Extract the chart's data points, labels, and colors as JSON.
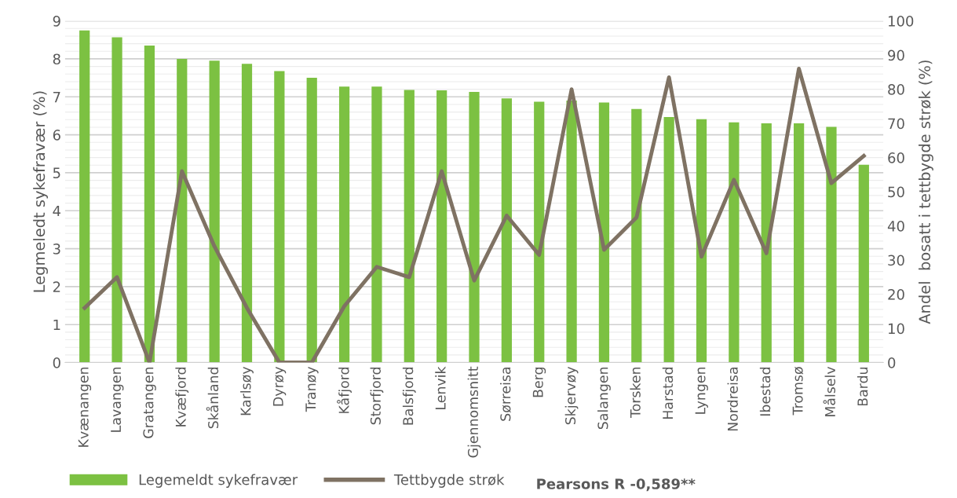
{
  "chart_data": {
    "type": "bar",
    "ylabel": "Legmeledt sykefravær (%)",
    "y2label": "Andel  bosatt i tettbygde strøk (%)",
    "categories": [
      "Kvænangen",
      "Lavangen",
      "Gratangen",
      "Kvæfjord",
      "Skånland",
      "Karlsøy",
      "Dyrøy",
      "Tranøy",
      "Kåfjord",
      "Storfjord",
      "Balsfjord",
      "Lenvik",
      "Gjennomsnitt",
      "Sørreisa",
      "Berg",
      "Skjervøy",
      "Salangen",
      "Torsken",
      "Harstad",
      "Lyngen",
      "Nordreisa",
      "Ibestad",
      "Tromsø",
      "Målselv",
      "Bardu"
    ],
    "series": [
      {
        "name": "Legemeldt sykefravær",
        "color": "#7cc142",
        "values": [
          8.75,
          8.57,
          8.35,
          8.0,
          7.95,
          7.87,
          7.68,
          7.5,
          7.27,
          7.27,
          7.18,
          7.17,
          7.13,
          6.96,
          6.87,
          6.9,
          6.85,
          6.68,
          6.47,
          6.41,
          6.33,
          6.3,
          6.3,
          6.21,
          5.21
        ]
      },
      {
        "name": "Tettbygde strøk",
        "type": "line",
        "axis": "y2",
        "color": "#7f7263",
        "values": [
          16,
          25,
          0,
          56,
          34,
          16,
          0,
          0,
          16.5,
          28,
          25,
          56,
          24,
          43,
          31.5,
          80,
          33,
          42.5,
          83.5,
          31,
          53.5,
          32,
          86,
          52.5,
          60.5
        ]
      }
    ],
    "ylim": [
      0,
      9
    ],
    "yticks": [
      0,
      1,
      2,
      3,
      4,
      5,
      6,
      7,
      8,
      9
    ],
    "y2lim": [
      0,
      100
    ],
    "y2ticks": [
      0,
      10,
      20,
      30,
      40,
      50,
      60,
      70,
      80,
      90,
      100
    ],
    "grid": "y",
    "legend": "bottom",
    "marker": "none",
    "line_style": "solid",
    "annotations": [
      "Pearsons R -0,589**"
    ]
  }
}
